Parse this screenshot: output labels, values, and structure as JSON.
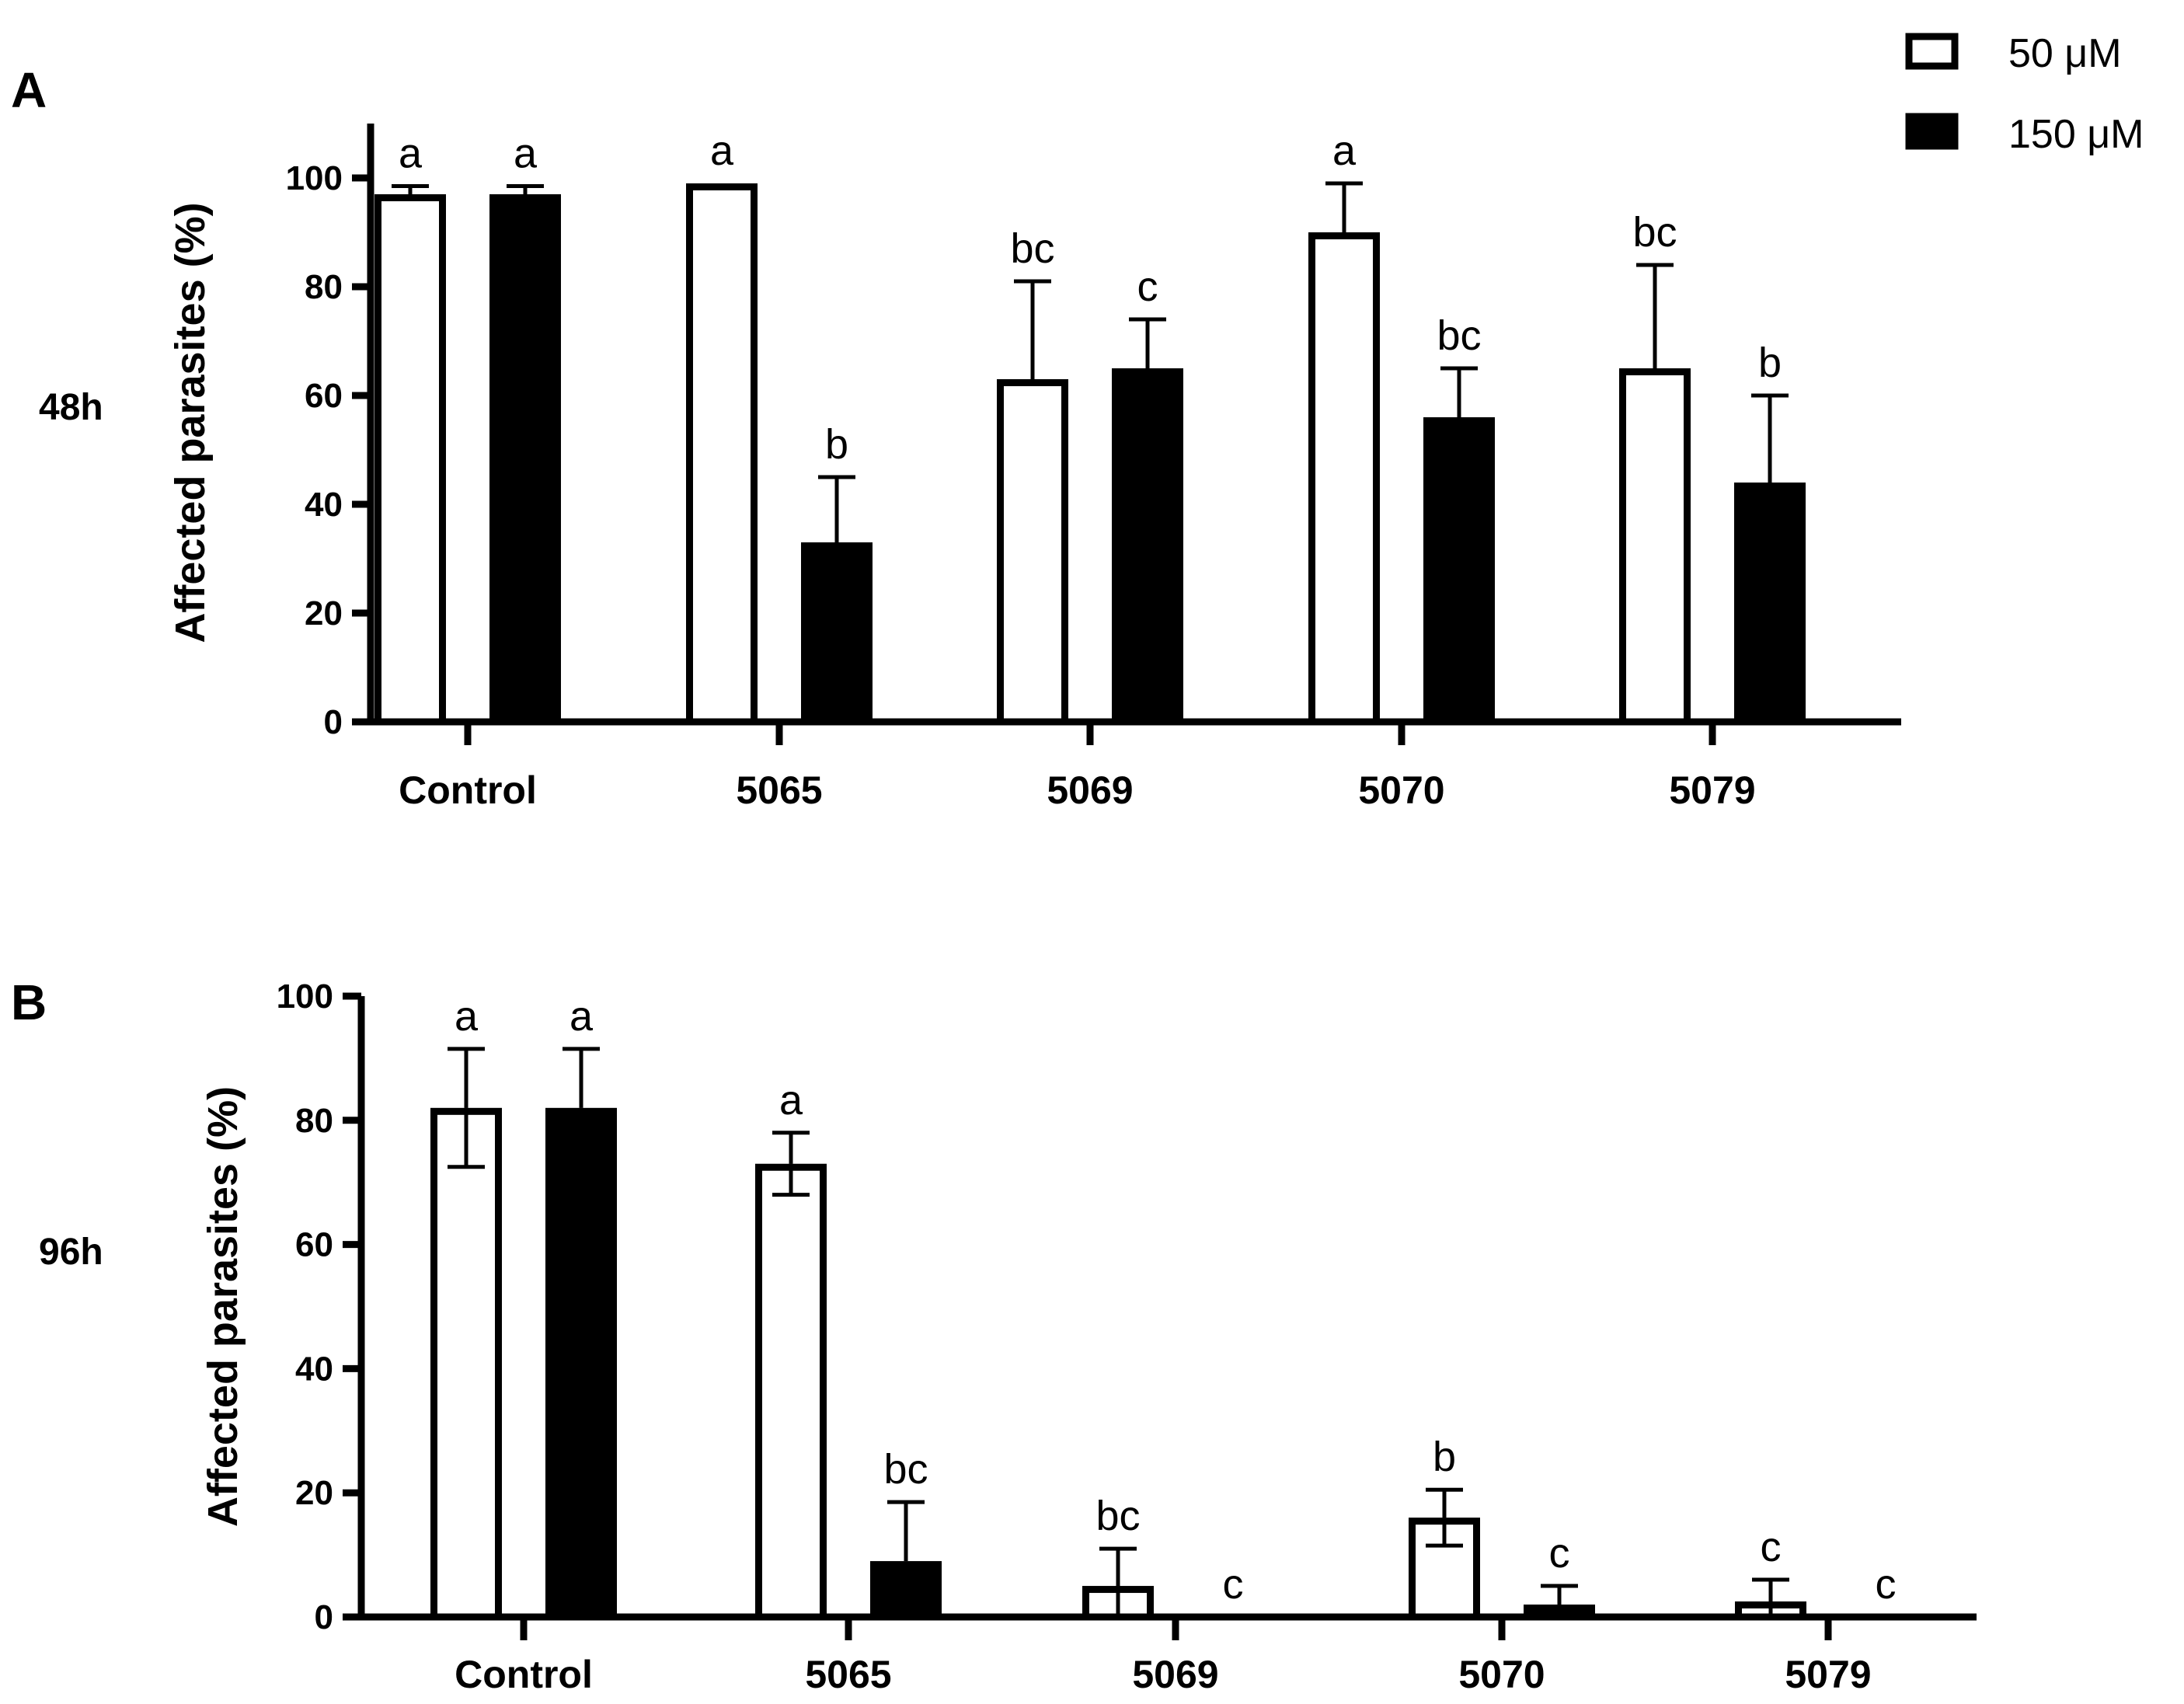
{
  "legend": {
    "items": [
      {
        "label": "50 μM",
        "fill": "#ffffff"
      },
      {
        "label": "150 μM",
        "fill": "#000000"
      }
    ]
  },
  "colors": {
    "ink": "#000000",
    "background": "#ffffff"
  },
  "chart_data": [
    {
      "type": "bar",
      "panel": "A",
      "time_label": "48h",
      "ylabel": "Affected parasites  (%)",
      "ylim": [
        0,
        110
      ],
      "yticks": [
        0,
        20,
        40,
        60,
        80,
        100
      ],
      "categories": [
        "Control",
        "5065",
        "5069",
        "5070",
        "5079"
      ],
      "series": [
        {
          "name": "50 μM",
          "values": [
            97,
            99,
            63,
            90,
            65
          ],
          "errors": [
            1.5,
            0,
            18,
            9,
            19
          ],
          "labels": [
            "a",
            "a",
            "bc",
            "a",
            "bc"
          ]
        },
        {
          "name": "150 μM",
          "values": [
            97,
            33,
            65,
            56,
            44
          ],
          "errors": [
            1.5,
            12,
            9,
            9,
            16
          ],
          "labels": [
            "a",
            "b",
            "c",
            "bc",
            "b"
          ]
        }
      ]
    },
    {
      "type": "bar",
      "panel": "B",
      "time_label": "96h",
      "ylabel": "Affected parasites  (%)",
      "ylim": [
        0,
        100
      ],
      "yticks": [
        0,
        20,
        40,
        60,
        80,
        100
      ],
      "categories": [
        "Control",
        "5065",
        "5069",
        "5070",
        "5079"
      ],
      "series": [
        {
          "name": "50 μM",
          "values": [
            82,
            73,
            5,
            16,
            2.5
          ],
          "errors": [
            9.5,
            5,
            6,
            4.5,
            3.5
          ],
          "labels": [
            "a",
            "a",
            "bc",
            "b",
            "c"
          ]
        },
        {
          "name": "150 μM",
          "values": [
            82,
            9,
            0,
            2,
            0
          ],
          "errors": [
            9.5,
            9.5,
            0,
            3,
            0
          ],
          "labels": [
            "a",
            "bc",
            "c",
            "c",
            "c"
          ]
        }
      ]
    }
  ]
}
